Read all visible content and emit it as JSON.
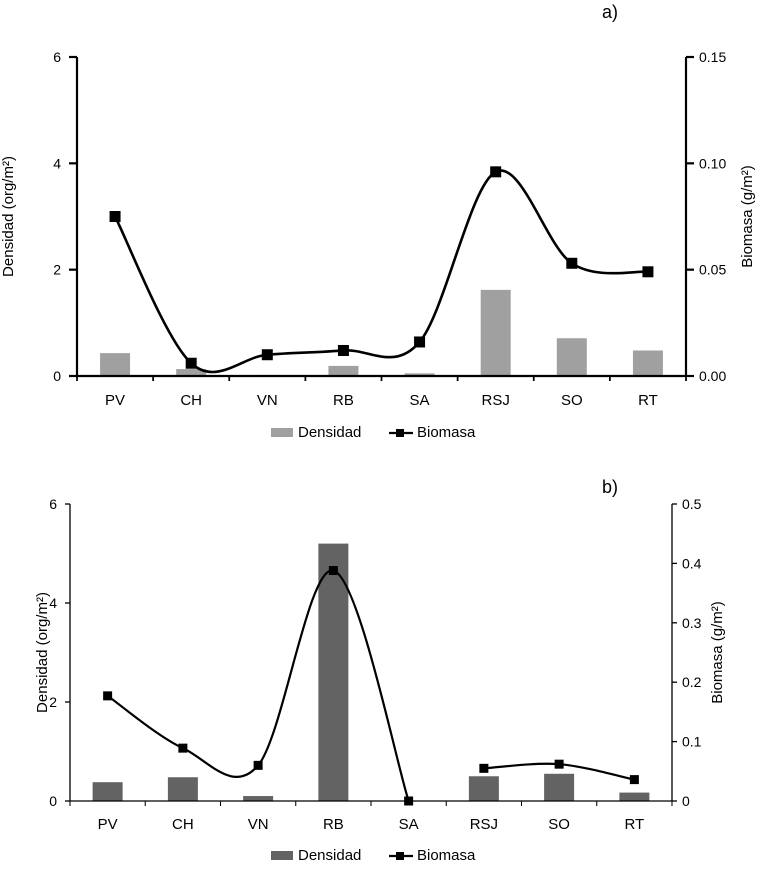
{
  "chart_data": [
    {
      "panel_label": "a)",
      "type": "bar+line",
      "categories": [
        "PV",
        "CH",
        "VN",
        "RB",
        "SA",
        "RSJ",
        "SO",
        "RT"
      ],
      "series": [
        {
          "name": "Densidad",
          "type": "bar",
          "axis": "left",
          "color": "#a0a0a0",
          "values": [
            0.43,
            0.13,
            0.02,
            0.19,
            0.05,
            1.62,
            0.71,
            0.48
          ]
        },
        {
          "name": "Biomasa",
          "type": "line",
          "axis": "right",
          "color": "#000000",
          "values": [
            0.075,
            0.006,
            0.01,
            0.012,
            0.016,
            0.096,
            0.053,
            0.049
          ]
        }
      ],
      "ylabel_left": "Densidad (org/m²)",
      "ylabel_right": "Biomasa (g/m²)",
      "ylim_left": [
        0,
        6
      ],
      "ylim_right": [
        0,
        0.15
      ],
      "yticks_left": [
        "0",
        "2",
        "4",
        "6"
      ],
      "yticks_right": [
        "0.00",
        "0.05",
        "0.10",
        "0.15"
      ],
      "legend": [
        "Densidad",
        "Biomasa"
      ],
      "legend_position": "bottom-center"
    },
    {
      "panel_label": "b)",
      "type": "bar+line",
      "categories": [
        "PV",
        "CH",
        "VN",
        "RB",
        "SA",
        "RSJ",
        "SO",
        "RT"
      ],
      "series": [
        {
          "name": "Densidad",
          "type": "bar",
          "axis": "left",
          "color": "#636363",
          "values": [
            0.38,
            0.48,
            0.1,
            5.2,
            0.0,
            0.5,
            0.55,
            0.17
          ]
        },
        {
          "name": "Biomasa",
          "type": "line",
          "axis": "right",
          "color": "#000000",
          "values": [
            0.177,
            0.089,
            0.06,
            0.388,
            0.0,
            0.055,
            0.062,
            0.036
          ]
        }
      ],
      "ylabel_left": "Densidad (org/m²)",
      "ylabel_right": "Biomasa (g/m²)",
      "ylim_left": [
        0,
        6
      ],
      "ylim_right": [
        0,
        0.5
      ],
      "yticks_left": [
        "0",
        "2",
        "4",
        "6"
      ],
      "yticks_right": [
        "0",
        "0.1",
        "0.2",
        "0.3",
        "0.4",
        "0.5"
      ],
      "legend": [
        "Densidad",
        "Biomasa"
      ],
      "legend_position": "bottom-center"
    }
  ]
}
